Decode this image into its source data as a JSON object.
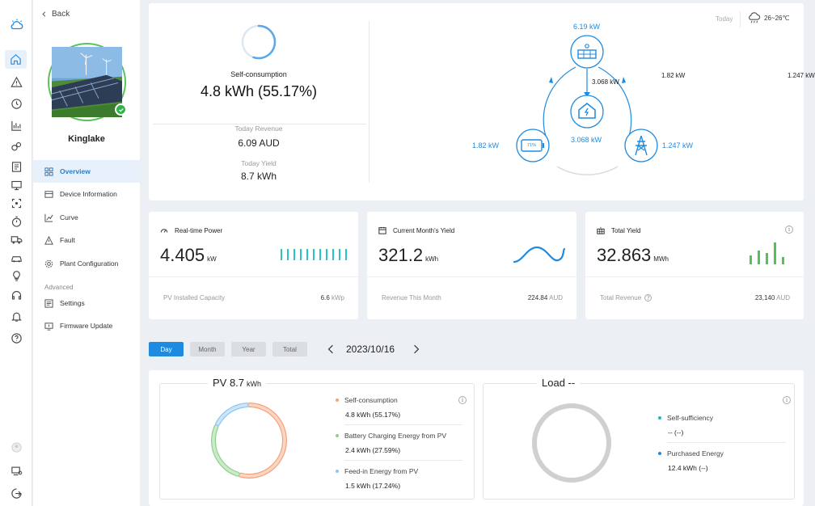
{
  "sidebar": {
    "back_label": "Back",
    "plant_name": "Kinglake",
    "menu": [
      {
        "label": "Overview",
        "icon": "grid-icon",
        "active": true
      },
      {
        "label": "Device Information",
        "icon": "device-icon"
      },
      {
        "label": "Curve",
        "icon": "chart-icon"
      },
      {
        "label": "Fault",
        "icon": "warning-icon"
      },
      {
        "label": "Plant Configuration",
        "icon": "gear-icon"
      }
    ],
    "advanced_label": "Advanced",
    "advanced_menu": [
      {
        "label": "Settings",
        "icon": "settings-icon"
      },
      {
        "label": "Firmware Update",
        "icon": "firmware-icon"
      }
    ]
  },
  "summary": {
    "self_consumption_label": "Self-consumption",
    "self_consumption_value": "4.8 kWh (55.17%)",
    "today_revenue_label": "Today Revenue",
    "today_revenue_value": "6.09 AUD",
    "today_yield_label": "Today Yield",
    "today_yield_value": "8.7 kWh"
  },
  "weather": {
    "day_label": "Today",
    "temperature": "26~26℃"
  },
  "energy_flow": {
    "pv_power": "6.19 kW",
    "pv_to_battery": "1.82 kW",
    "pv_to_grid": "1.247 kW",
    "pv_to_home": "3.068 kW",
    "battery_power": "1.82 kW",
    "battery_soc": "71%",
    "home_power": "3.068 kW",
    "grid_power": "1.247 kW"
  },
  "stats": {
    "realtime_power": {
      "title": "Real-time Power",
      "value": "4.405",
      "unit": "kW",
      "foot_label": "PV Installed Capacity",
      "foot_value": "6.6",
      "foot_unit": "kWp"
    },
    "month_yield": {
      "title": "Current Month's Yield",
      "value": "321.2",
      "unit": "kWh",
      "foot_label": "Revenue This Month",
      "foot_value": "224.84",
      "foot_unit": "AUD"
    },
    "total_yield": {
      "title": "Total Yield",
      "value": "32.863",
      "unit": "MWh",
      "foot_label": "Total Revenue",
      "foot_value": "23,140",
      "foot_unit": "AUD"
    }
  },
  "period_tabs": [
    "Day",
    "Month",
    "Year",
    "Total"
  ],
  "active_tab": "Day",
  "date": "2023/10/16",
  "pv_panel": {
    "title": "PV 8.7",
    "unit": "kWh",
    "items": [
      {
        "label": "Self-consumption",
        "value": "4.8 kWh (55.17%)",
        "color": "#f4a27a",
        "fraction": 0.5517
      },
      {
        "label": "Battery Charging Energy from PV",
        "value": "2.4 kWh (27.59%)",
        "color": "#8fd18a",
        "fraction": 0.2759
      },
      {
        "label": "Feed-in Energy from PV",
        "value": "1.5 kWh (17.24%)",
        "color": "#8fc6f0",
        "fraction": 0.1724
      }
    ]
  },
  "load_panel": {
    "title": "Load --",
    "items": [
      {
        "label": "Self-sufficiency",
        "value": "-- (--)",
        "color": "#1fb6c6"
      },
      {
        "label": "Purchased Energy",
        "value": "12.4 kWh (--)",
        "color": "#1f8be0"
      }
    ]
  },
  "colors": {
    "accent": "#1f8be0",
    "success": "#2fb44a"
  }
}
